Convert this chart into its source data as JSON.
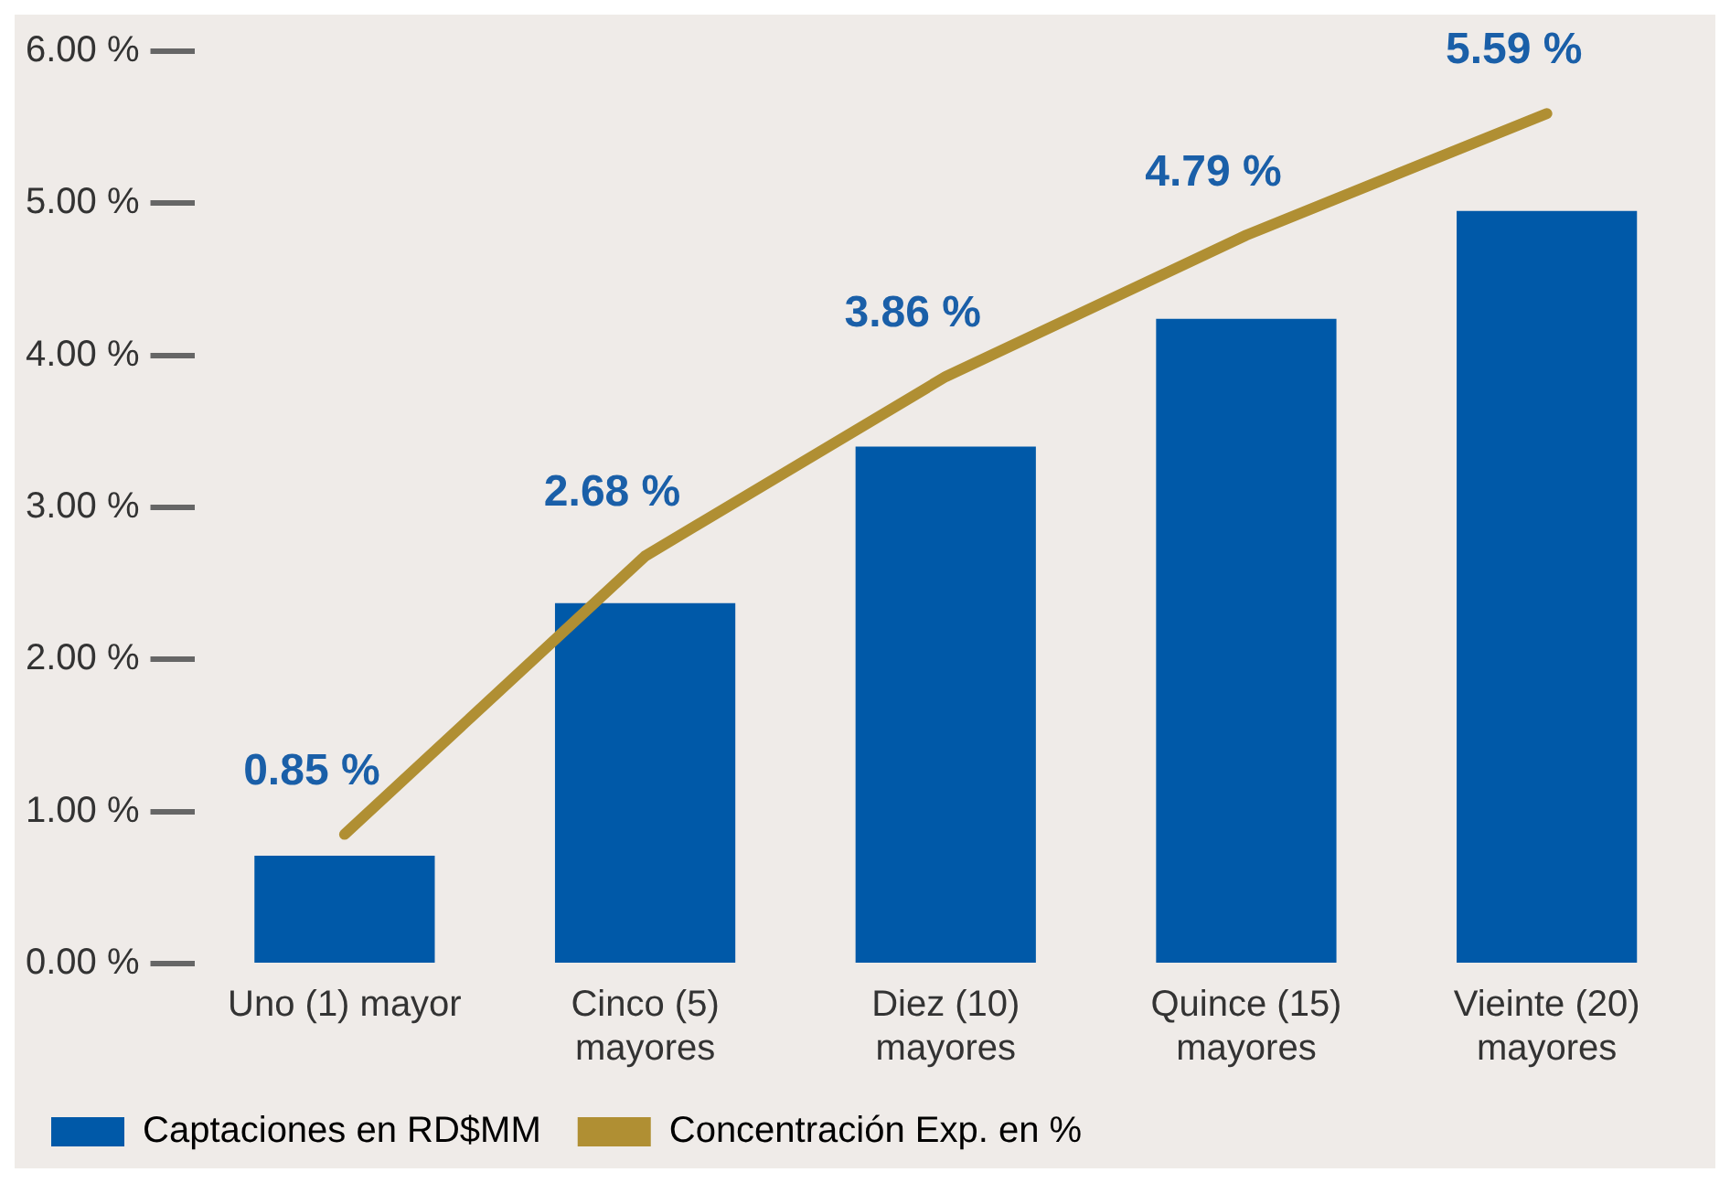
{
  "chart_data": {
    "type": "bar",
    "categories": [
      "Uno (1) mayor",
      "Cinco (5) mayores",
      "Diez (10) mayores",
      "Quince (15) mayores",
      "Vieinte (20) mayores"
    ],
    "series": [
      {
        "name": "Captaciones en RD$MM",
        "color": "#0059a8",
        "values": [
          0.71,
          2.37,
          3.4,
          4.24,
          4.95
        ]
      },
      {
        "name": "Concentración Exp. en %",
        "type": "line",
        "color": "#b08f33",
        "values": [
          0.85,
          2.68,
          3.86,
          4.79,
          5.59
        ],
        "value_labels": [
          "0.85 %",
          "2.68 %",
          "3.86 %",
          "4.79 %",
          "5.59 %"
        ]
      }
    ],
    "ylim": [
      0,
      6
    ],
    "yticks": [
      {
        "value": 0,
        "label": "0.00 %"
      },
      {
        "value": 1,
        "label": "1.00 %"
      },
      {
        "value": 2,
        "label": "2.00 %"
      },
      {
        "value": 3,
        "label": "3.00 %"
      },
      {
        "value": 4,
        "label": "4.00 %"
      },
      {
        "value": 5,
        "label": "5.00 %"
      },
      {
        "value": 6,
        "label": "6.00 %"
      }
    ],
    "grid": false,
    "legend": "bottom left",
    "marker": "none"
  }
}
